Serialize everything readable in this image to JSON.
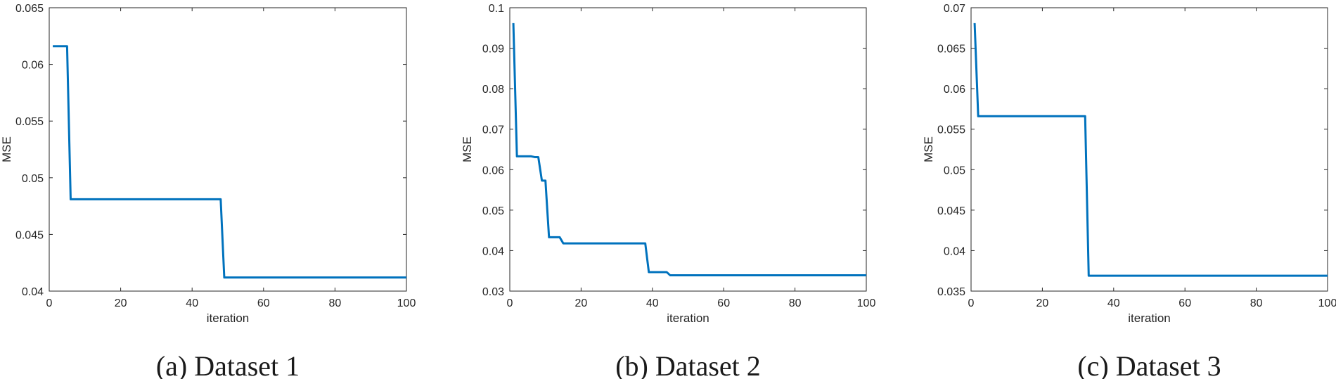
{
  "chart_data": [
    {
      "type": "line",
      "caption": "(a) Dataset 1",
      "xlabel": "iteration",
      "ylabel": "MSE",
      "xlim": [
        0,
        100
      ],
      "ylim": [
        0.04,
        0.065
      ],
      "xticks": [
        0,
        20,
        40,
        60,
        80,
        100
      ],
      "xtick_labels": [
        "0",
        "20",
        "40",
        "60",
        "80",
        "100"
      ],
      "yticks": [
        0.04,
        0.045,
        0.05,
        0.055,
        0.06,
        0.065
      ],
      "ytick_labels": [
        "0.04",
        "0.045",
        "0.05",
        "0.055",
        "0.06",
        "0.065"
      ],
      "grid": false,
      "series": [
        {
          "name": "MSE",
          "color": "#0072BD",
          "x": [
            1,
            5,
            6,
            48,
            49,
            100
          ],
          "y": [
            0.0616,
            0.0616,
            0.0481,
            0.0481,
            0.0412,
            0.0412
          ]
        }
      ]
    },
    {
      "type": "line",
      "caption": "(b) Dataset 2",
      "xlabel": "iteration",
      "ylabel": "MSE",
      "xlim": [
        0,
        100
      ],
      "ylim": [
        0.03,
        0.1
      ],
      "xticks": [
        0,
        20,
        40,
        60,
        80,
        100
      ],
      "xtick_labels": [
        "0",
        "20",
        "40",
        "60",
        "80",
        "100"
      ],
      "yticks": [
        0.03,
        0.04,
        0.05,
        0.06,
        0.07,
        0.08,
        0.09,
        0.1
      ],
      "ytick_labels": [
        "0.03",
        "0.04",
        "0.05",
        "0.06",
        "0.07",
        "0.08",
        "0.09",
        "0.1"
      ],
      "grid": false,
      "series": [
        {
          "name": "MSE",
          "color": "#0072BD",
          "x": [
            1,
            2,
            6,
            7,
            8,
            9,
            10,
            11,
            14,
            15,
            38,
            39,
            44,
            45,
            100
          ],
          "y": [
            0.0962,
            0.0633,
            0.0633,
            0.0631,
            0.0631,
            0.0573,
            0.0573,
            0.0433,
            0.0433,
            0.0418,
            0.0418,
            0.0347,
            0.0347,
            0.0339,
            0.0339
          ]
        }
      ]
    },
    {
      "type": "line",
      "caption": "(c) Dataset 3",
      "xlabel": "iteration",
      "ylabel": "MSE",
      "xlim": [
        0,
        100
      ],
      "ylim": [
        0.035,
        0.07
      ],
      "xticks": [
        0,
        20,
        40,
        60,
        80,
        100
      ],
      "xtick_labels": [
        "0",
        "20",
        "40",
        "60",
        "80",
        "100"
      ],
      "yticks": [
        0.035,
        0.04,
        0.045,
        0.05,
        0.055,
        0.06,
        0.065,
        0.07
      ],
      "ytick_labels": [
        "0.035",
        "0.04",
        "0.045",
        "0.05",
        "0.055",
        "0.06",
        "0.065",
        "0.07"
      ],
      "grid": false,
      "series": [
        {
          "name": "MSE",
          "color": "#0072BD",
          "x": [
            1,
            2,
            32,
            33,
            100
          ],
          "y": [
            0.0681,
            0.0566,
            0.0566,
            0.0369,
            0.0369
          ]
        }
      ]
    }
  ]
}
